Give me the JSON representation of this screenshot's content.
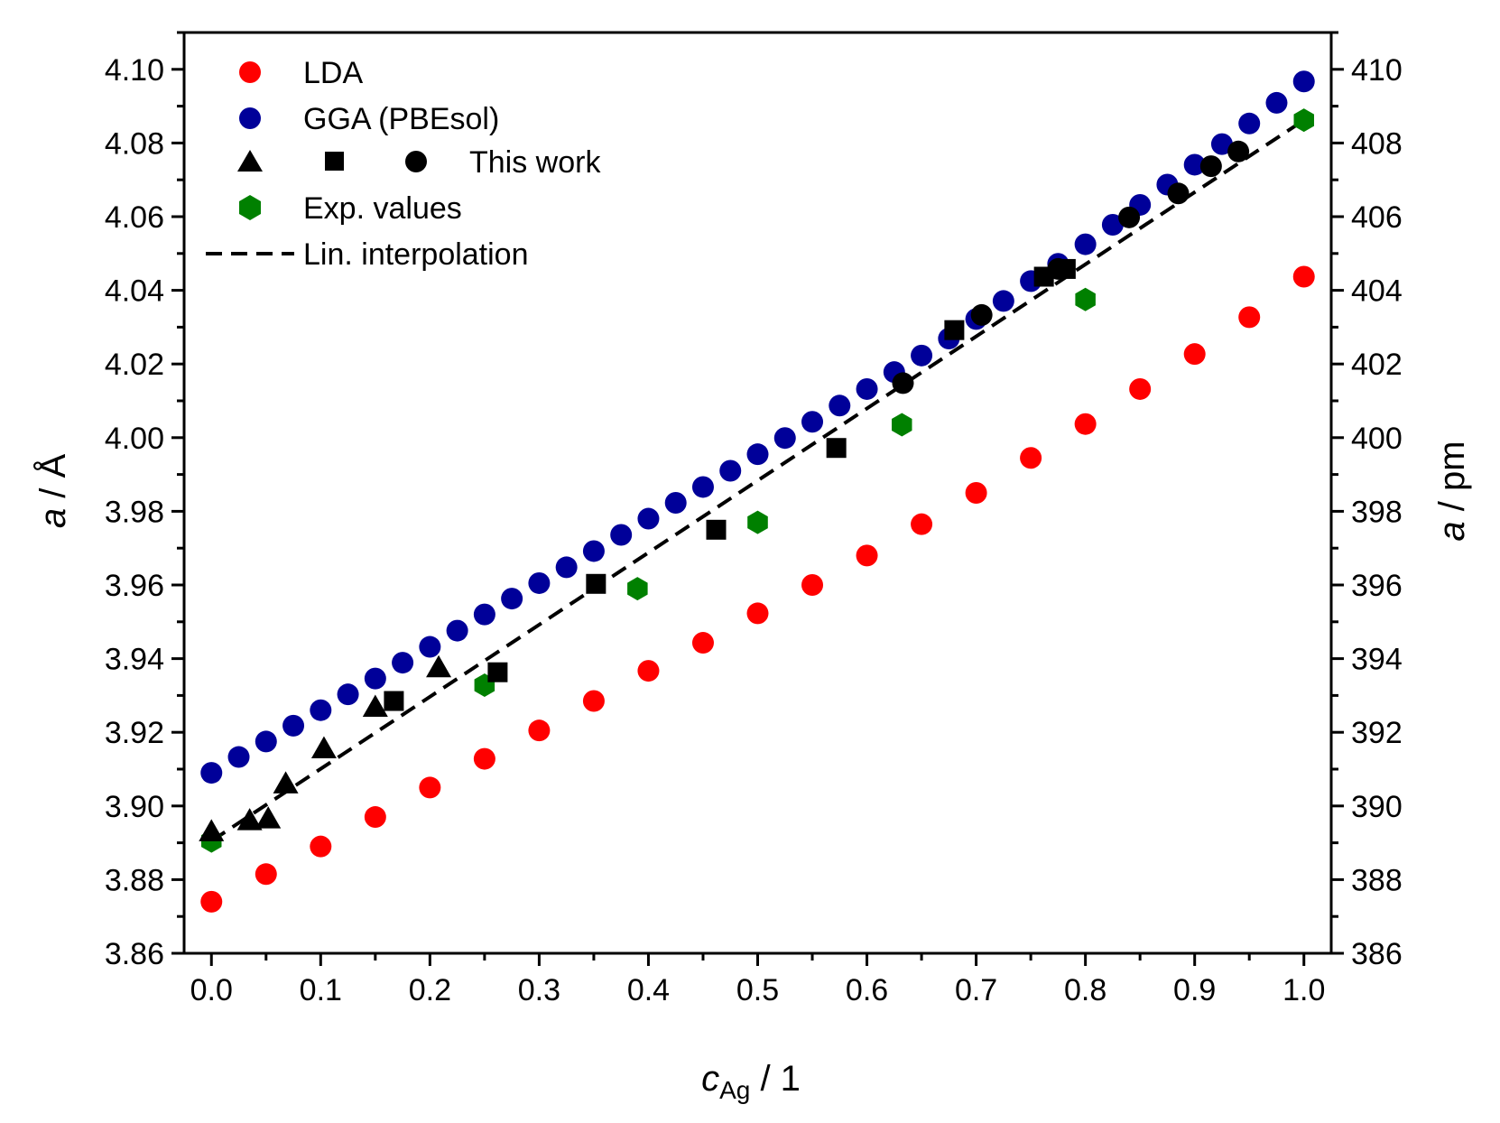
{
  "chart_data": {
    "type": "scatter",
    "xlabel": {
      "main": "c",
      "sub": "Ag",
      "suffix": " / 1"
    },
    "ylabel": {
      "main": "a",
      "suffix": " / Å"
    },
    "y2label": {
      "main": "a",
      "suffix": " / pm"
    },
    "xlim": [
      -0.025,
      1.025
    ],
    "ylim": [
      3.86,
      4.11
    ],
    "y2lim": [
      386,
      411
    ],
    "xticks": [
      "0.0",
      "0.1",
      "0.2",
      "0.3",
      "0.4",
      "0.5",
      "0.6",
      "0.7",
      "0.8",
      "0.9",
      "1.0"
    ],
    "yticks": [
      "3.86",
      "3.88",
      "3.90",
      "3.92",
      "3.94",
      "3.96",
      "3.98",
      "4.00",
      "4.02",
      "4.04",
      "4.06",
      "4.08",
      "4.10"
    ],
    "y2ticks": [
      "386",
      "388",
      "390",
      "392",
      "394",
      "396",
      "398",
      "400",
      "402",
      "404",
      "406",
      "408",
      "410"
    ],
    "legend_position": "top-left",
    "legend": {
      "lda": "LDA",
      "gga": "GGA (PBEsol)",
      "this_work": "This work",
      "exp": "Exp. values",
      "interp": "Lin. interpolation"
    },
    "colors": {
      "lda": "#ff0000",
      "gga": "#000099",
      "this_work": "#000000",
      "exp": "#008000",
      "interp": "#000000"
    },
    "series": [
      {
        "name": "LDA",
        "key": "lda",
        "marker": "circle",
        "x": [
          0.0,
          0.05,
          0.1,
          0.15,
          0.2,
          0.25,
          0.3,
          0.35,
          0.4,
          0.45,
          0.5,
          0.55,
          0.6,
          0.65,
          0.7,
          0.75,
          0.8,
          0.85,
          0.9,
          0.95,
          1.0
        ],
        "y": [
          3.874,
          3.8815,
          3.889,
          3.897,
          3.905,
          3.9128,
          3.9205,
          3.9285,
          3.9367,
          3.9443,
          3.9523,
          3.96,
          3.968,
          3.9765,
          3.985,
          3.9945,
          4.0037,
          4.0132,
          4.0227,
          4.0327,
          4.0437
        ]
      },
      {
        "name": "GGA (PBEsol)",
        "key": "gga",
        "marker": "circle",
        "x": [
          0.0,
          0.025,
          0.05,
          0.075,
          0.1,
          0.125,
          0.15,
          0.175,
          0.2,
          0.225,
          0.25,
          0.275,
          0.3,
          0.325,
          0.35,
          0.375,
          0.4,
          0.425,
          0.45,
          0.475,
          0.5,
          0.525,
          0.55,
          0.575,
          0.6,
          0.625,
          0.65,
          0.675,
          0.7,
          0.725,
          0.75,
          0.775,
          0.8,
          0.825,
          0.85,
          0.875,
          0.9,
          0.925,
          0.95,
          0.975,
          1.0
        ],
        "y": [
          3.909,
          3.9133,
          3.9175,
          3.9218,
          3.926,
          3.9303,
          3.9346,
          3.9389,
          3.9432,
          3.9476,
          3.952,
          3.9563,
          3.9605,
          3.9648,
          3.9692,
          3.9736,
          3.978,
          3.9823,
          3.9866,
          3.991,
          3.9955,
          3.9999,
          4.0043,
          4.0087,
          4.0132,
          4.0178,
          4.0223,
          4.0269,
          4.0322,
          4.0371,
          4.0425,
          4.0472,
          4.0525,
          4.0578,
          4.0632,
          4.0687,
          4.0741,
          4.0797,
          4.0853,
          4.0909,
          4.0967
        ]
      },
      {
        "name": "This work (triangles)",
        "key": "this_work",
        "marker": "triangle",
        "x": [
          0.0,
          0.035,
          0.052,
          0.068,
          0.103,
          0.15,
          0.208
        ],
        "y": [
          3.893,
          3.896,
          3.8965,
          3.906,
          3.9155,
          3.9268,
          3.9375
        ]
      },
      {
        "name": "This work (squares)",
        "key": "this_work",
        "marker": "square",
        "x": [
          0.167,
          0.262,
          0.352,
          0.462,
          0.572,
          0.68,
          0.762,
          0.782
        ],
        "y": [
          3.9285,
          3.9363,
          3.9603,
          3.975,
          3.9972,
          4.0292,
          4.0437,
          4.0458
        ]
      },
      {
        "name": "This work (circles)",
        "key": "this_work",
        "marker": "circle",
        "x": [
          0.633,
          0.705,
          0.775,
          0.84,
          0.885,
          0.915,
          0.94
        ],
        "y": [
          4.0148,
          4.0333,
          4.0458,
          4.0598,
          4.0663,
          4.0737,
          4.0777
        ]
      },
      {
        "name": "Exp. values",
        "key": "exp",
        "marker": "hexagon",
        "x": [
          0.0,
          0.25,
          0.39,
          0.5,
          0.632,
          0.8,
          1.0
        ],
        "y": [
          3.8905,
          3.9328,
          3.959,
          3.977,
          4.0035,
          4.0375,
          4.0862
        ]
      },
      {
        "name": "Lin. interpolation",
        "key": "interp",
        "marker": "dashed-line",
        "x": [
          0.0,
          1.0
        ],
        "y": [
          3.8905,
          4.0862
        ]
      }
    ]
  }
}
